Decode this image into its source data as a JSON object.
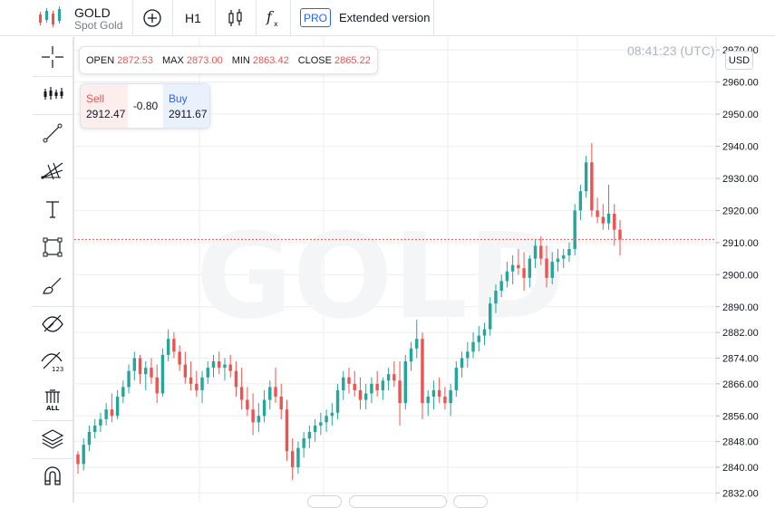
{
  "header": {
    "symbol": "GOLD",
    "description": "Spot Gold",
    "interval": "H1",
    "pro_badge": "PRO",
    "extended_label": "Extended version",
    "icons": [
      "logo-candles-icon",
      "add-compare-icon",
      "candle-style-icon",
      "indicators-fx-icon"
    ]
  },
  "left_toolbar": {
    "tools": [
      "crosshair-icon",
      "pattern-tool-icon",
      "trend-line-icon",
      "fib-fan-icon",
      "text-tool-icon",
      "rectangle-icon",
      "brush-icon",
      "hide-drawings-icon",
      "hide-numbers-icon",
      "remove-all-icon",
      "layers-icon",
      "magnet-icon"
    ],
    "remove_all_label": "ALL",
    "hide_numbers_label": "123"
  },
  "chart": {
    "time_label": "08:41:23 (UTC)",
    "watermark": "GOLD",
    "currency_button": "USD",
    "ohlc": {
      "open_label": "OPEN",
      "open": "2872.53",
      "max_label": "MAX",
      "max": "2873.00",
      "min_label": "MIN",
      "min": "2863.42",
      "close_label": "CLOSE",
      "close": "2865.22"
    },
    "trade": {
      "sell_label": "Sell",
      "sell_price": "2912.47",
      "spread": "-0.80",
      "buy_label": "Buy",
      "buy_price": "2911.67"
    },
    "up_color": "#26a69a",
    "down_color": "#ef5350",
    "current_price_line": 2911
  },
  "chart_data": {
    "type": "candlestick",
    "y_ticks": [
      "2832.00",
      "2840.00",
      "2848.00",
      "2856.00",
      "2866.00",
      "2874.00",
      "2882.00",
      "2890.00",
      "2900.00",
      "2910.00",
      "2920.00",
      "2930.00",
      "2940.00",
      "2950.00",
      "2960.00",
      "2970.00"
    ],
    "ylim": [
      2829,
      2974
    ],
    "candles": [
      [
        2844,
        2845,
        2838,
        2841
      ],
      [
        2841,
        2849,
        2839,
        2847
      ],
      [
        2847,
        2853,
        2845,
        2851
      ],
      [
        2851,
        2855,
        2849,
        2853
      ],
      [
        2853,
        2857,
        2851,
        2855
      ],
      [
        2855,
        2860,
        2853,
        2858
      ],
      [
        2858,
        2863,
        2854,
        2856
      ],
      [
        2856,
        2864,
        2855,
        2862
      ],
      [
        2862,
        2867,
        2860,
        2865
      ],
      [
        2865,
        2872,
        2863,
        2870
      ],
      [
        2870,
        2876,
        2867,
        2874
      ],
      [
        2874,
        2875,
        2866,
        2869
      ],
      [
        2869,
        2873,
        2864,
        2871
      ],
      [
        2871,
        2874,
        2866,
        2868
      ],
      [
        2868,
        2872,
        2860,
        2863
      ],
      [
        2863,
        2877,
        2862,
        2875
      ],
      [
        2875,
        2883,
        2873,
        2880
      ],
      [
        2880,
        2882,
        2874,
        2876
      ],
      [
        2876,
        2878,
        2870,
        2872
      ],
      [
        2872,
        2876,
        2866,
        2868
      ],
      [
        2868,
        2873,
        2864,
        2866
      ],
      [
        2866,
        2870,
        2862,
        2864
      ],
      [
        2864,
        2870,
        2860,
        2868
      ],
      [
        2868,
        2873,
        2866,
        2871
      ],
      [
        2871,
        2875,
        2868,
        2873
      ],
      [
        2873,
        2876,
        2869,
        2871
      ],
      [
        2871,
        2874,
        2867,
        2872
      ],
      [
        2872,
        2875,
        2868,
        2870
      ],
      [
        2870,
        2873,
        2862,
        2865
      ],
      [
        2865,
        2871,
        2858,
        2861
      ],
      [
        2861,
        2865,
        2856,
        2858
      ],
      [
        2858,
        2863,
        2850,
        2854
      ],
      [
        2854,
        2860,
        2851,
        2856
      ],
      [
        2856,
        2864,
        2854,
        2861
      ],
      [
        2861,
        2867,
        2858,
        2865
      ],
      [
        2865,
        2871,
        2860,
        2862
      ],
      [
        2862,
        2866,
        2855,
        2858
      ],
      [
        2858,
        2861,
        2842,
        2845
      ],
      [
        2845,
        2849,
        2836,
        2840
      ],
      [
        2840,
        2848,
        2838,
        2846
      ],
      [
        2846,
        2851,
        2843,
        2849
      ],
      [
        2849,
        2853,
        2846,
        2851
      ],
      [
        2851,
        2855,
        2848,
        2853
      ],
      [
        2853,
        2857,
        2850,
        2854
      ],
      [
        2854,
        2858,
        2851,
        2856
      ],
      [
        2856,
        2860,
        2853,
        2857
      ],
      [
        2857,
        2866,
        2855,
        2864
      ],
      [
        2864,
        2870,
        2861,
        2868
      ],
      [
        2868,
        2871,
        2863,
        2866
      ],
      [
        2866,
        2870,
        2862,
        2864
      ],
      [
        2864,
        2868,
        2858,
        2861
      ],
      [
        2861,
        2866,
        2858,
        2863
      ],
      [
        2863,
        2868,
        2860,
        2866
      ],
      [
        2866,
        2870,
        2862,
        2864
      ],
      [
        2864,
        2868,
        2861,
        2867
      ],
      [
        2867,
        2871,
        2864,
        2869
      ],
      [
        2869,
        2873,
        2865,
        2867
      ],
      [
        2867,
        2873,
        2853,
        2860
      ],
      [
        2860,
        2875,
        2858,
        2873
      ],
      [
        2873,
        2879,
        2870,
        2877
      ],
      [
        2877,
        2886,
        2874,
        2880
      ],
      [
        2880,
        2882,
        2855,
        2860
      ],
      [
        2860,
        2864,
        2856,
        2862
      ],
      [
        2862,
        2867,
        2858,
        2864
      ],
      [
        2864,
        2868,
        2860,
        2862
      ],
      [
        2862,
        2865,
        2858,
        2860
      ],
      [
        2860,
        2866,
        2856,
        2864
      ],
      [
        2864,
        2873,
        2862,
        2871
      ],
      [
        2871,
        2876,
        2868,
        2874
      ],
      [
        2874,
        2879,
        2871,
        2876
      ],
      [
        2876,
        2882,
        2874,
        2879
      ],
      [
        2879,
        2884,
        2876,
        2881
      ],
      [
        2881,
        2885,
        2878,
        2883
      ],
      [
        2883,
        2893,
        2881,
        2891
      ],
      [
        2891,
        2897,
        2888,
        2895
      ],
      [
        2895,
        2900,
        2893,
        2898
      ],
      [
        2898,
        2904,
        2896,
        2901
      ],
      [
        2901,
        2906,
        2897,
        2903
      ],
      [
        2903,
        2908,
        2900,
        2902
      ],
      [
        2902,
        2907,
        2895,
        2899
      ],
      [
        2899,
        2906,
        2896,
        2905
      ],
      [
        2905,
        2911,
        2902,
        2909
      ],
      [
        2909,
        2912,
        2903,
        2905
      ],
      [
        2905,
        2909,
        2896,
        2899
      ],
      [
        2899,
        2907,
        2897,
        2904
      ],
      [
        2904,
        2908,
        2901,
        2905
      ],
      [
        2905,
        2908,
        2902,
        2906
      ],
      [
        2906,
        2910,
        2904,
        2908
      ],
      [
        2908,
        2922,
        2906,
        2920
      ],
      [
        2920,
        2928,
        2917,
        2926
      ],
      [
        2926,
        2937,
        2924,
        2935
      ],
      [
        2935,
        2941,
        2918,
        2920
      ],
      [
        2920,
        2924,
        2916,
        2918
      ],
      [
        2918,
        2922,
        2914,
        2916
      ],
      [
        2916,
        2928,
        2914,
        2919
      ],
      [
        2919,
        2922,
        2909,
        2914
      ],
      [
        2914,
        2917,
        2906,
        2911
      ]
    ]
  }
}
